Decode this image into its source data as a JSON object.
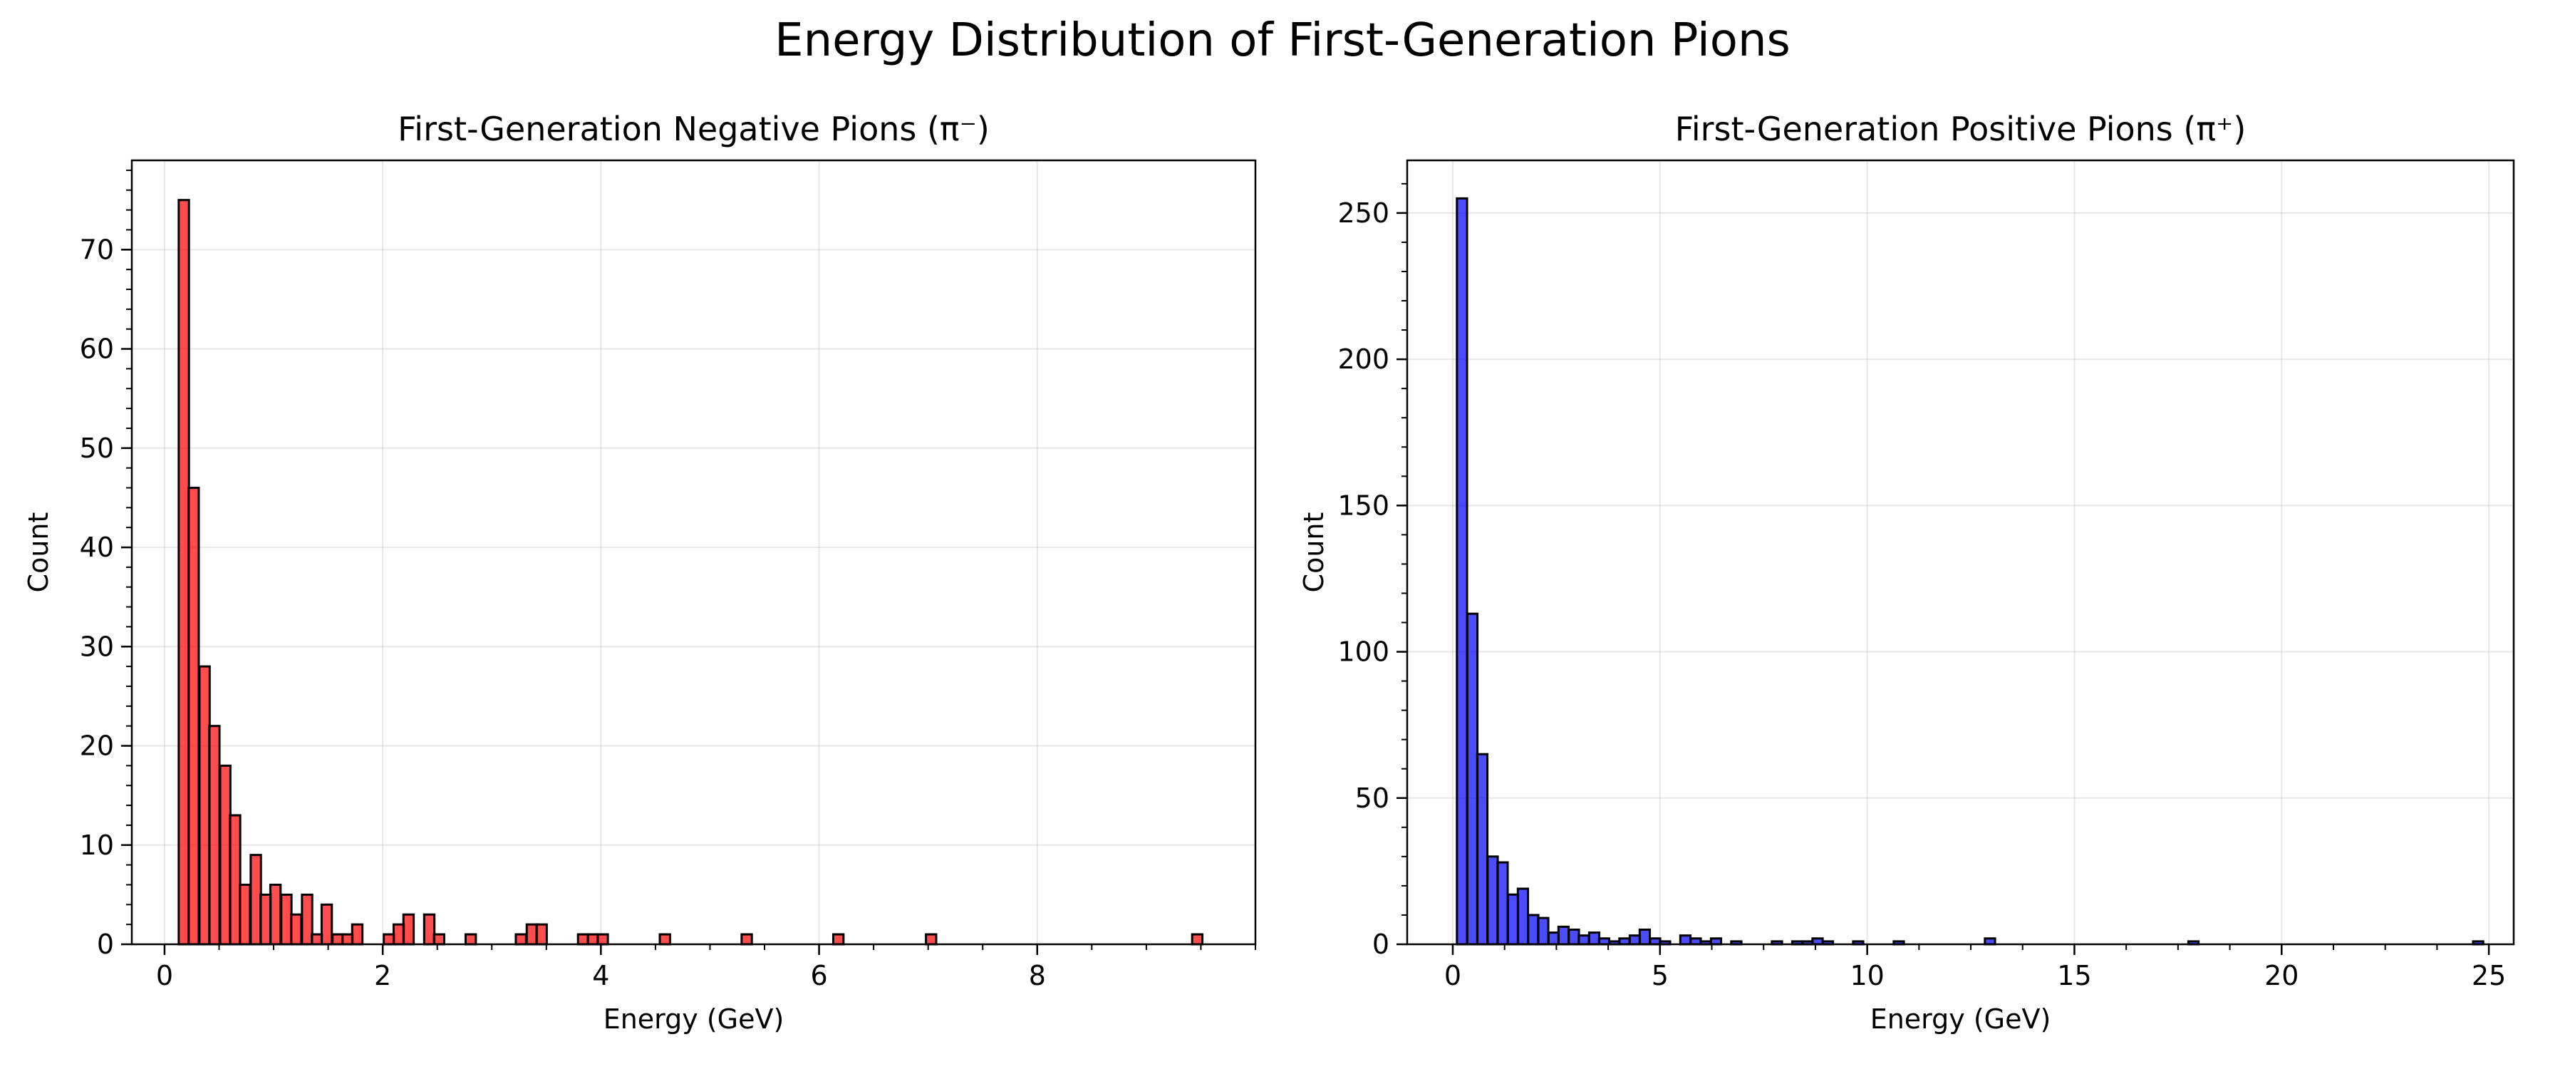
{
  "figure": {
    "suptitle": "Energy Distribution of First-Generation Pions"
  },
  "chart_data": [
    {
      "type": "bar",
      "title": "First-Generation Negative Pions (π⁻)",
      "xlabel": "Energy (GeV)",
      "ylabel": "Count",
      "xlim": [
        -0.3,
        10.0
      ],
      "ylim": [
        0,
        79
      ],
      "xticks": [
        0,
        2,
        4,
        6,
        8
      ],
      "yticks": [
        0,
        10,
        20,
        30,
        40,
        50,
        60,
        70
      ],
      "grid": true,
      "color": "#ff0000",
      "edge_color": "#000000",
      "bin_width": 0.0938,
      "bins": [
        [
          0.13,
          75
        ],
        [
          0.22,
          46
        ],
        [
          0.32,
          28
        ],
        [
          0.41,
          22
        ],
        [
          0.51,
          18
        ],
        [
          0.6,
          13
        ],
        [
          0.69,
          6
        ],
        [
          0.79,
          9
        ],
        [
          0.88,
          5
        ],
        [
          0.97,
          6
        ],
        [
          1.07,
          5
        ],
        [
          1.16,
          3
        ],
        [
          1.26,
          5
        ],
        [
          1.35,
          1
        ],
        [
          1.44,
          4
        ],
        [
          1.54,
          1
        ],
        [
          1.63,
          1
        ],
        [
          1.72,
          2
        ],
        [
          2.01,
          1
        ],
        [
          2.1,
          2
        ],
        [
          2.19,
          3
        ],
        [
          2.38,
          3
        ],
        [
          2.47,
          1
        ],
        [
          2.76,
          1
        ],
        [
          3.22,
          1
        ],
        [
          3.32,
          2
        ],
        [
          3.41,
          2
        ],
        [
          3.79,
          1
        ],
        [
          3.88,
          1
        ],
        [
          3.97,
          1
        ],
        [
          4.54,
          1
        ],
        [
          5.29,
          1
        ],
        [
          6.13,
          1
        ],
        [
          6.98,
          1
        ],
        [
          9.42,
          1
        ]
      ]
    },
    {
      "type": "bar",
      "title": "First-Generation Positive Pions (π⁺)",
      "xlabel": "Energy (GeV)",
      "ylabel": "Count",
      "xlim": [
        -1.1,
        25.6
      ],
      "ylim": [
        0,
        268
      ],
      "xticks": [
        0,
        5,
        10,
        15,
        20,
        25
      ],
      "yticks": [
        0,
        50,
        100,
        150,
        200,
        250
      ],
      "grid": true,
      "color": "#0000ff",
      "edge_color": "#000000",
      "bin_width": 0.245,
      "bins": [
        [
          0.1,
          255
        ],
        [
          0.35,
          113
        ],
        [
          0.59,
          65
        ],
        [
          0.84,
          30
        ],
        [
          1.08,
          28
        ],
        [
          1.33,
          17
        ],
        [
          1.57,
          19
        ],
        [
          1.82,
          10
        ],
        [
          2.06,
          9
        ],
        [
          2.31,
          4
        ],
        [
          2.55,
          6
        ],
        [
          2.8,
          5
        ],
        [
          3.04,
          3
        ],
        [
          3.29,
          4
        ],
        [
          3.53,
          2
        ],
        [
          3.78,
          1
        ],
        [
          4.02,
          2
        ],
        [
          4.27,
          3
        ],
        [
          4.51,
          5
        ],
        [
          4.76,
          2
        ],
        [
          5.0,
          1
        ],
        [
          5.49,
          3
        ],
        [
          5.74,
          2
        ],
        [
          5.98,
          1
        ],
        [
          6.23,
          2
        ],
        [
          6.72,
          1
        ],
        [
          7.7,
          1
        ],
        [
          8.19,
          1
        ],
        [
          8.44,
          1
        ],
        [
          8.68,
          2
        ],
        [
          8.93,
          1
        ],
        [
          9.66,
          1
        ],
        [
          10.64,
          1
        ],
        [
          12.84,
          2
        ],
        [
          17.75,
          1
        ],
        [
          24.62,
          1
        ]
      ]
    }
  ]
}
